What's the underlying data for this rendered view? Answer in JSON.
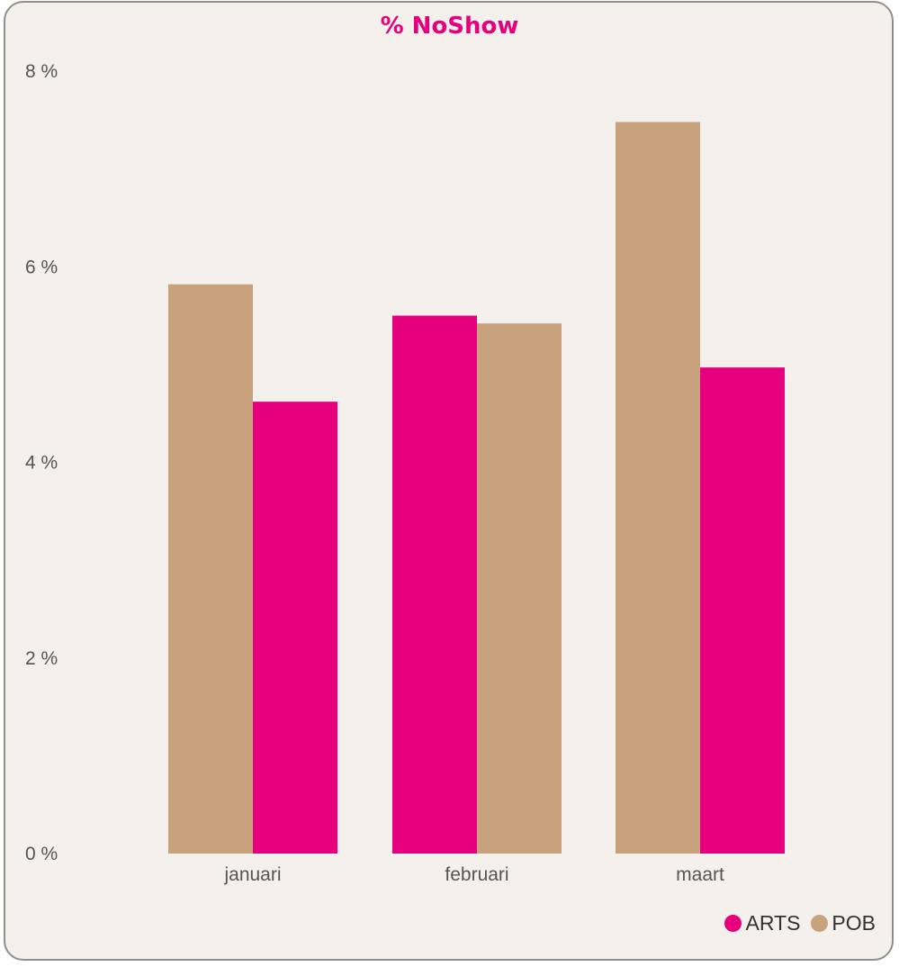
{
  "chart_data": {
    "type": "bar",
    "title": "% NoShow",
    "xlabel": "",
    "ylabel": "",
    "categories": [
      "januari",
      "februari",
      "maart"
    ],
    "series": [
      {
        "name": "POB",
        "color": "#c8a27c",
        "values": [
          5.82,
          5.42,
          7.48
        ]
      },
      {
        "name": "ARTS",
        "color": "#e6007e",
        "values": [
          4.62,
          5.5,
          4.97
        ]
      }
    ],
    "bar_order": [
      [
        "POB",
        "ARTS"
      ],
      [
        "ARTS",
        "POB"
      ],
      [
        "POB",
        "ARTS"
      ]
    ],
    "ylim": [
      0,
      8
    ],
    "yticks": [
      "0 %",
      "2 %",
      "4 %",
      "6 %",
      "8 %"
    ],
    "ytick_values": [
      0,
      2,
      4,
      6,
      8
    ],
    "grid": false,
    "legend": {
      "placement": "bottom-right",
      "entries": [
        "ARTS",
        "POB"
      ]
    }
  }
}
